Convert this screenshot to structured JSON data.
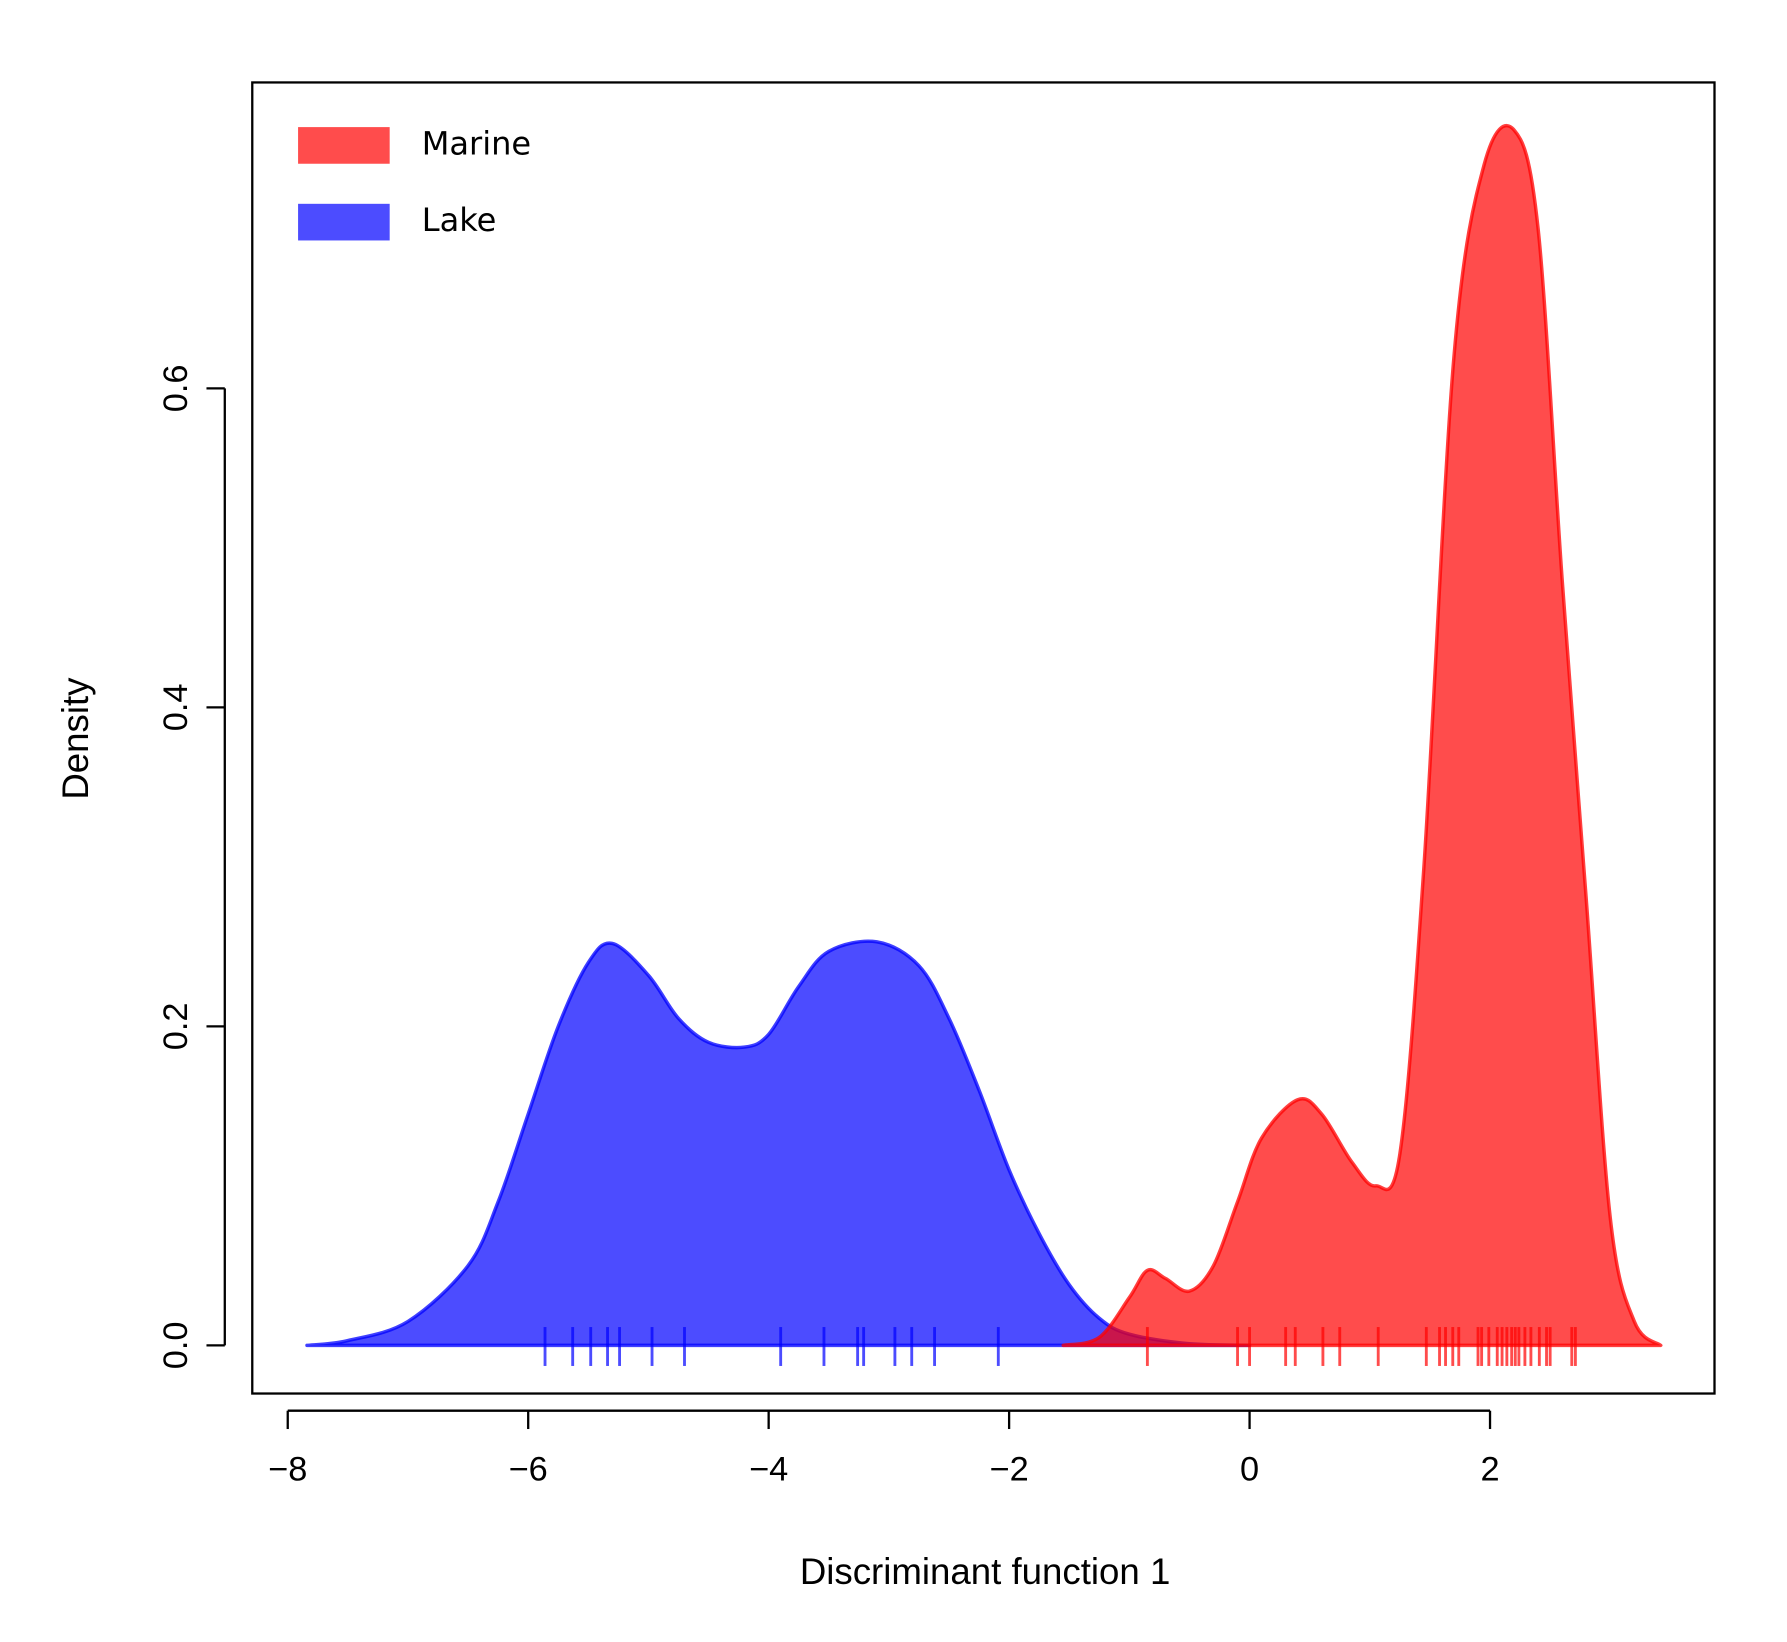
{
  "chart_data": {
    "type": "density",
    "xlabel": "Discriminant function 1",
    "ylabel": "Density",
    "xlim": [
      -8.295,
      3.867
    ],
    "ylim": [
      -0.0302,
      0.7918
    ],
    "xticks": [
      {
        "value": -8,
        "label": "−8"
      },
      {
        "value": -6,
        "label": "−6"
      },
      {
        "value": -4,
        "label": "−4"
      },
      {
        "value": -2,
        "label": "−2"
      },
      0,
      2
    ],
    "yticks": [
      {
        "value": 0,
        "label": "0.0"
      },
      0.2,
      0.4,
      0.6
    ],
    "legend": "top-left",
    "series": [
      {
        "name": "Marine",
        "color": "#ff0000",
        "x": [
          -1.55,
          -1.25,
          -1.0,
          -0.85,
          -0.7,
          -0.5,
          -0.3,
          -0.1,
          0.1,
          0.4,
          0.6,
          0.85,
          1.05,
          1.25,
          1.45,
          1.7,
          1.95,
          2.2,
          2.4,
          2.6,
          2.8,
          3.0,
          3.2,
          3.42
        ],
        "values": [
          0.0,
          0.005,
          0.03,
          0.047,
          0.042,
          0.034,
          0.05,
          0.09,
          0.13,
          0.154,
          0.145,
          0.115,
          0.1,
          0.12,
          0.3,
          0.62,
          0.74,
          0.762,
          0.7,
          0.48,
          0.28,
          0.08,
          0.015,
          0.0
        ],
        "rug": [
          -0.85,
          -0.1,
          0,
          0.3,
          0.38,
          0.61,
          0.75,
          1.07,
          1.47,
          1.58,
          1.63,
          1.69,
          1.74,
          1.9,
          1.93,
          1.99,
          2.06,
          2.1,
          2.14,
          2.18,
          2.21,
          2.24,
          2.29,
          2.34,
          2.41,
          2.47,
          2.5,
          2.68,
          2.71
        ]
      },
      {
        "name": "Lake",
        "color": "#0000ff",
        "x": [
          -7.84,
          -7.5,
          -7.0,
          -6.5,
          -6.25,
          -6.0,
          -5.75,
          -5.5,
          -5.3,
          -5.0,
          -4.75,
          -4.5,
          -4.2,
          -4.0,
          -3.75,
          -3.5,
          -3.1,
          -2.75,
          -2.5,
          -2.25,
          -2.0,
          -1.75,
          -1.5,
          -1.25,
          -1.0,
          -0.5,
          0.0
        ],
        "values": [
          0.0,
          0.003,
          0.015,
          0.05,
          0.09,
          0.145,
          0.2,
          0.24,
          0.252,
          0.232,
          0.205,
          0.19,
          0.187,
          0.195,
          0.225,
          0.247,
          0.253,
          0.238,
          0.205,
          0.16,
          0.11,
          0.07,
          0.038,
          0.017,
          0.007,
          0.001,
          0.0
        ],
        "rug": [
          -5.86,
          -5.63,
          -5.48,
          -5.34,
          -5.24,
          -4.97,
          -4.7,
          -3.9,
          -3.54,
          -3.26,
          -3.21,
          -2.95,
          -2.81,
          -2.62,
          -2.09
        ]
      }
    ]
  }
}
